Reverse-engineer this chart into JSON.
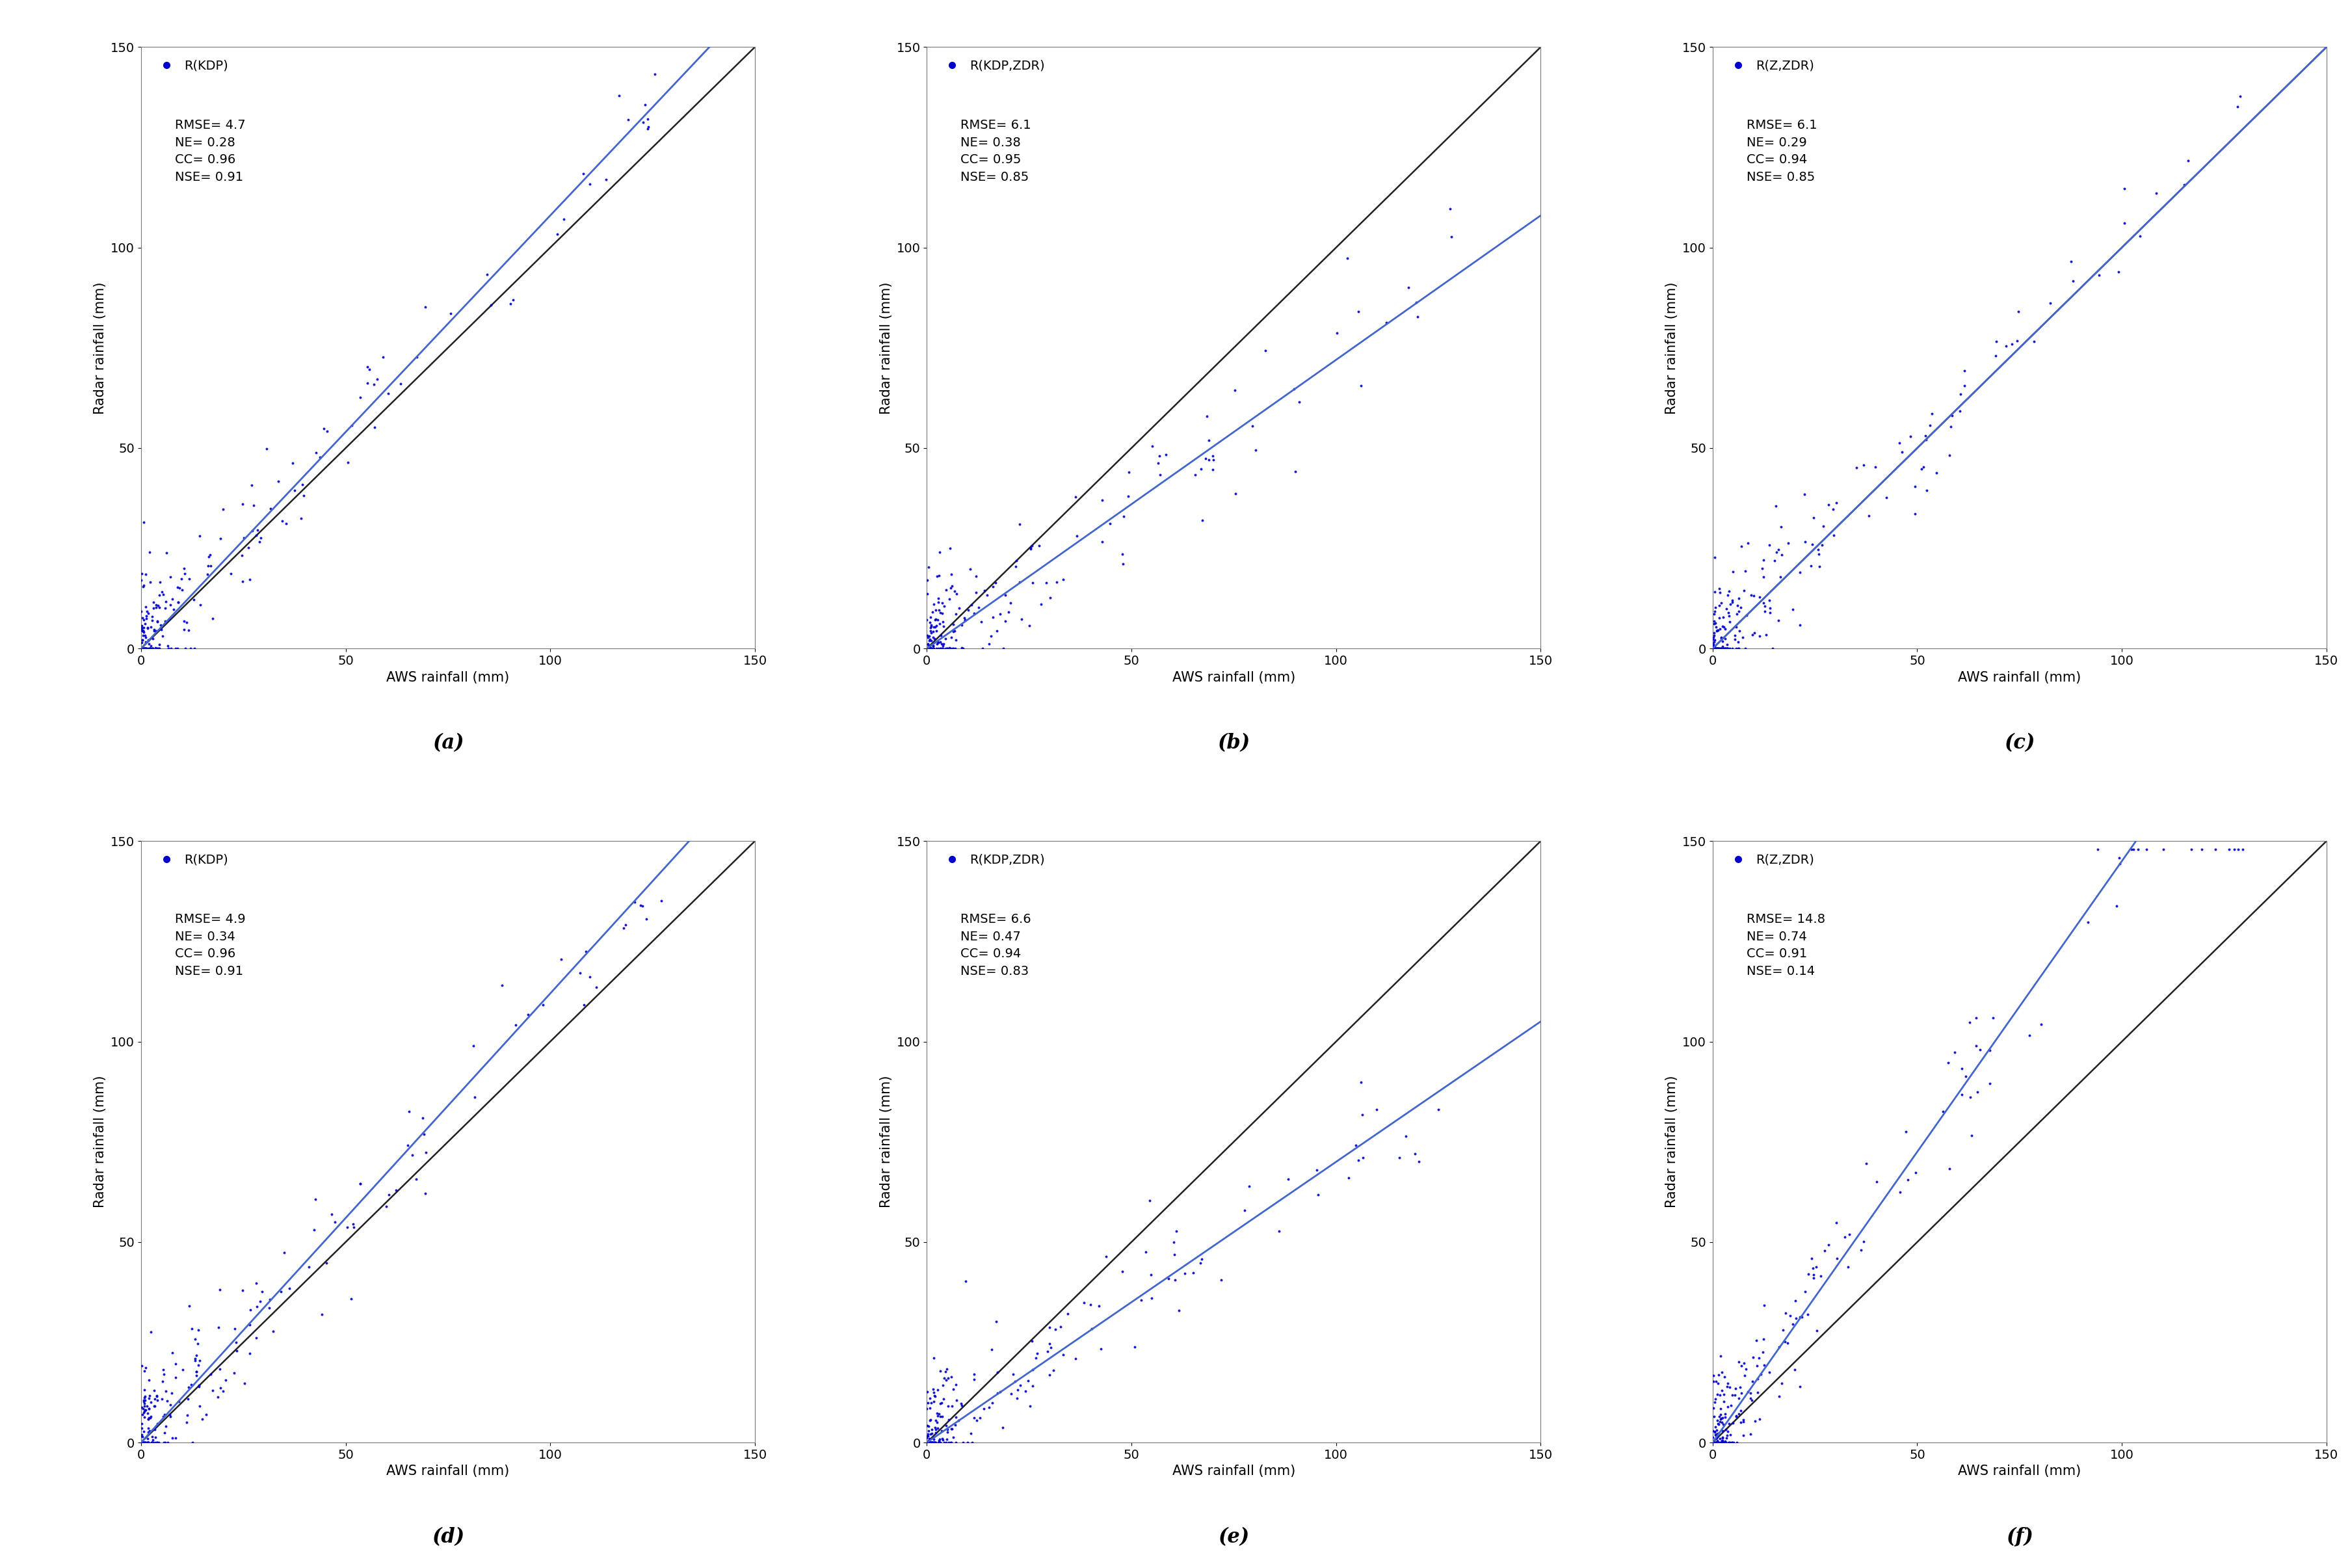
{
  "panels": [
    {
      "label": "(a)",
      "legend_label": "R(KDP)",
      "RMSE": "4.7",
      "NE": "0.28",
      "CC": "0.96",
      "NSE": "0.91",
      "fit_slope": 1.08,
      "scatter_seed": 42,
      "n_points": 200
    },
    {
      "label": "(b)",
      "legend_label": "R(KDP,ZDR)",
      "RMSE": "6.1",
      "NE": "0.38",
      "CC": "0.95",
      "NSE": "0.85",
      "fit_slope": 0.72,
      "scatter_seed": 43,
      "n_points": 200
    },
    {
      "label": "(c)",
      "legend_label": "R(Z,ZDR)",
      "RMSE": "6.1",
      "NE": "0.29",
      "CC": "0.94",
      "NSE": "0.85",
      "fit_slope": 1.0,
      "scatter_seed": 44,
      "n_points": 200
    },
    {
      "label": "(d)",
      "legend_label": "R(KDP)",
      "RMSE": "4.9",
      "NE": "0.34",
      "CC": "0.96",
      "NSE": "0.91",
      "fit_slope": 1.12,
      "scatter_seed": 45,
      "n_points": 220
    },
    {
      "label": "(e)",
      "legend_label": "R(KDP,ZDR)",
      "RMSE": "6.6",
      "NE": "0.47",
      "CC": "0.94",
      "NSE": "0.83",
      "fit_slope": 0.7,
      "scatter_seed": 46,
      "n_points": 220
    },
    {
      "label": "(f)",
      "legend_label": "R(Z,ZDR)",
      "RMSE": "14.8",
      "NE": "0.74",
      "CC": "0.91",
      "NSE": "0.14",
      "fit_slope": 1.45,
      "scatter_seed": 47,
      "n_points": 220
    }
  ],
  "dot_color": "#0000CC",
  "fit_line_color": "#4466CC",
  "ref_line_color": "#222222",
  "xlabel": "AWS rainfall (mm)",
  "ylabel": "Radar rainfall (mm)",
  "xlim": [
    0,
    150
  ],
  "ylim": [
    0,
    150
  ],
  "xticks": [
    0,
    50,
    100,
    150
  ],
  "yticks": [
    0,
    50,
    100,
    150
  ],
  "dot_size": 8,
  "dot_alpha": 0.9,
  "background_color": "#ffffff",
  "text_fontsize": 14,
  "label_fontsize": 15,
  "tick_fontsize": 14,
  "panel_label_fontsize": 22
}
